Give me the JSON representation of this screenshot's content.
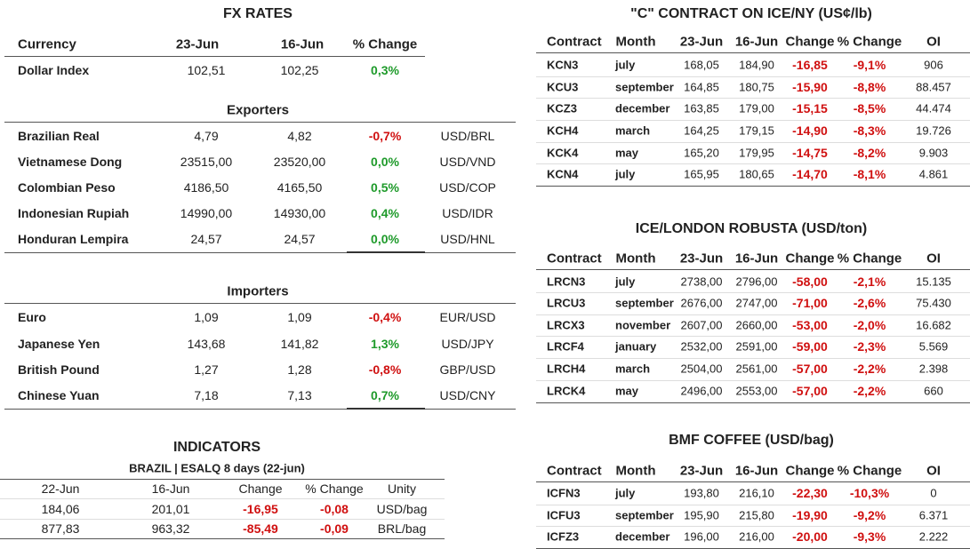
{
  "fx_rates": {
    "title": "FX RATES",
    "header": [
      "Currency",
      "23-Jun",
      "16-Jun",
      "% Change"
    ],
    "rows": [
      [
        "Dollar Index",
        "102,51",
        "102,25",
        "0,3%"
      ]
    ]
  },
  "exporters": {
    "title": "Exporters",
    "rows": [
      [
        "Brazilian Real",
        "4,79",
        "4,82",
        "-0,7%",
        "USD/BRL"
      ],
      [
        "Vietnamese Dong",
        "23515,00",
        "23520,00",
        "0,0%",
        "USD/VND"
      ],
      [
        "Colombian Peso",
        "4186,50",
        "4165,50",
        "0,5%",
        "USD/COP"
      ],
      [
        "Indonesian Rupiah",
        "14990,00",
        "14930,00",
        "0,4%",
        "USD/IDR"
      ],
      [
        "Honduran Lempira",
        "24,57",
        "24,57",
        "0,0%",
        "USD/HNL"
      ]
    ]
  },
  "importers": {
    "title": "Importers",
    "rows": [
      [
        "Euro",
        "1,09",
        "1,09",
        "-0,4%",
        "EUR/USD"
      ],
      [
        "Japanese Yen",
        "143,68",
        "141,82",
        "1,3%",
        "USD/JPY"
      ],
      [
        "British Pound",
        "1,27",
        "1,28",
        "-0,8%",
        "GBP/USD"
      ],
      [
        "Chinese Yuan",
        "7,18",
        "7,13",
        "0,7%",
        "USD/CNY"
      ]
    ]
  },
  "indicators": {
    "title": "INDICATORS",
    "subtitle": "BRAZIL | ESALQ 8 days (22-jun)",
    "header": [
      "22-Jun",
      "16-Jun",
      "Change",
      "% Change",
      "Unity"
    ],
    "rows": [
      [
        "184,06",
        "201,01",
        "-16,95",
        "-0,08",
        "USD/bag"
      ],
      [
        "877,83",
        "963,32",
        "-85,49",
        "-0,09",
        "BRL/bag"
      ]
    ]
  },
  "c_contract": {
    "title": "\"C\" CONTRACT ON ICE/NY (US¢/lb)",
    "header": [
      "Contract",
      "Month",
      "23-Jun",
      "16-Jun",
      "Change",
      "% Change",
      "OI"
    ],
    "rows": [
      [
        "KCN3",
        "july",
        "168,05",
        "184,90",
        "-16,85",
        "-9,1%",
        "906"
      ],
      [
        "KCU3",
        "september",
        "164,85",
        "180,75",
        "-15,90",
        "-8,8%",
        "88.457"
      ],
      [
        "KCZ3",
        "december",
        "163,85",
        "179,00",
        "-15,15",
        "-8,5%",
        "44.474"
      ],
      [
        "KCH4",
        "march",
        "164,25",
        "179,15",
        "-14,90",
        "-8,3%",
        "19.726"
      ],
      [
        "KCK4",
        "may",
        "165,20",
        "179,95",
        "-14,75",
        "-8,2%",
        "9.903"
      ],
      [
        "KCN4",
        "july",
        "165,95",
        "180,65",
        "-14,70",
        "-8,1%",
        "4.861"
      ]
    ]
  },
  "robusta": {
    "title": "ICE/LONDON ROBUSTA (USD/ton)",
    "header": [
      "Contract",
      "Month",
      "23-Jun",
      "16-Jun",
      "Change",
      "% Change",
      "OI"
    ],
    "rows": [
      [
        "LRCN3",
        "july",
        "2738,00",
        "2796,00",
        "-58,00",
        "-2,1%",
        "15.135"
      ],
      [
        "LRCU3",
        "september",
        "2676,00",
        "2747,00",
        "-71,00",
        "-2,6%",
        "75.430"
      ],
      [
        "LRCX3",
        "november",
        "2607,00",
        "2660,00",
        "-53,00",
        "-2,0%",
        "16.682"
      ],
      [
        "LRCF4",
        "january",
        "2532,00",
        "2591,00",
        "-59,00",
        "-2,3%",
        "5.569"
      ],
      [
        "LRCH4",
        "march",
        "2504,00",
        "2561,00",
        "-57,00",
        "-2,2%",
        "2.398"
      ],
      [
        "LRCK4",
        "may",
        "2496,00",
        "2553,00",
        "-57,00",
        "-2,2%",
        "660"
      ]
    ]
  },
  "bmf": {
    "title": "BMF COFFEE (USD/bag)",
    "header": [
      "Contract",
      "Month",
      "23-Jun",
      "16-Jun",
      "Change",
      "% Change",
      "OI"
    ],
    "rows": [
      [
        "ICFN3",
        "july",
        "193,80",
        "216,10",
        "-22,30",
        "-10,3%",
        "0"
      ],
      [
        "ICFU3",
        "september",
        "195,90",
        "215,80",
        "-19,90",
        "-9,2%",
        "6.371"
      ],
      [
        "ICFZ3",
        "december",
        "196,00",
        "216,00",
        "-20,00",
        "-9,3%",
        "2.222"
      ]
    ]
  }
}
